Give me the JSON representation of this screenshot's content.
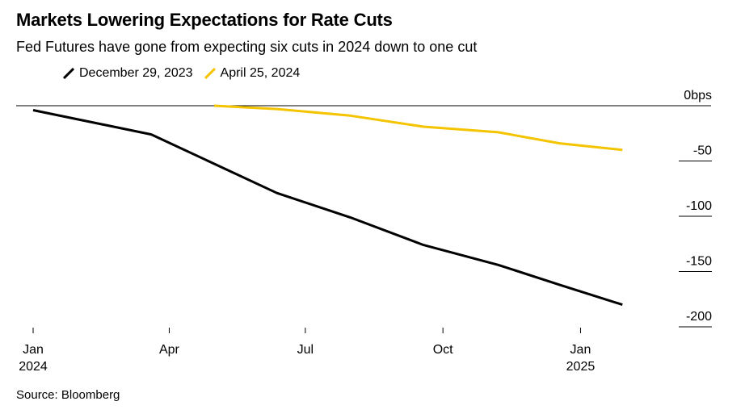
{
  "title": "Markets Lowering Expectations for Rate Cuts",
  "subtitle": "Fed Futures have gone from expecting six cuts in 2024 down to one cut",
  "source": "Source: Bloomberg",
  "chart_data": {
    "type": "line",
    "title": "Markets Lowering Expectations for Rate Cuts",
    "subtitle": "Fed Futures have gone from expecting six cuts in 2024 down to one cut",
    "xlabel": "",
    "ylabel": "",
    "xlim": [
      "2024-01-01",
      "2025-02-20"
    ],
    "ylim": [
      -200,
      0
    ],
    "y_ticks": [
      0,
      -50,
      -100,
      -150,
      -200
    ],
    "y_tick_labels": [
      "0bps",
      "-50",
      "-100",
      "-150",
      "-200"
    ],
    "x_ticks": [
      "2024-01-01",
      "2024-04-01",
      "2024-07-01",
      "2024-10-01",
      "2025-01-01"
    ],
    "x_tick_labels": [
      [
        "Jan",
        "2024"
      ],
      [
        "Apr",
        ""
      ],
      [
        "Jul",
        ""
      ],
      [
        "Oct",
        ""
      ],
      [
        "Jan",
        "2025"
      ]
    ],
    "legend_position": "top-left",
    "grid": false,
    "series": [
      {
        "name": "December 29, 2023",
        "color": "#000000",
        "points": [
          [
            "2024-01-01",
            -4
          ],
          [
            "2024-03-20",
            -26
          ],
          [
            "2024-06-12",
            -79
          ],
          [
            "2024-07-31",
            -101
          ],
          [
            "2024-09-18",
            -126
          ],
          [
            "2024-11-07",
            -144
          ],
          [
            "2024-12-18",
            -162
          ],
          [
            "2025-01-29",
            -180
          ]
        ]
      },
      {
        "name": "April 25, 2024",
        "color": "#f5c400",
        "points": [
          [
            "2024-05-01",
            0
          ],
          [
            "2024-06-12",
            -3
          ],
          [
            "2024-07-31",
            -9
          ],
          [
            "2024-09-18",
            -19
          ],
          [
            "2024-11-07",
            -24
          ],
          [
            "2024-12-18",
            -34
          ],
          [
            "2025-01-29",
            -40
          ]
        ]
      }
    ]
  }
}
